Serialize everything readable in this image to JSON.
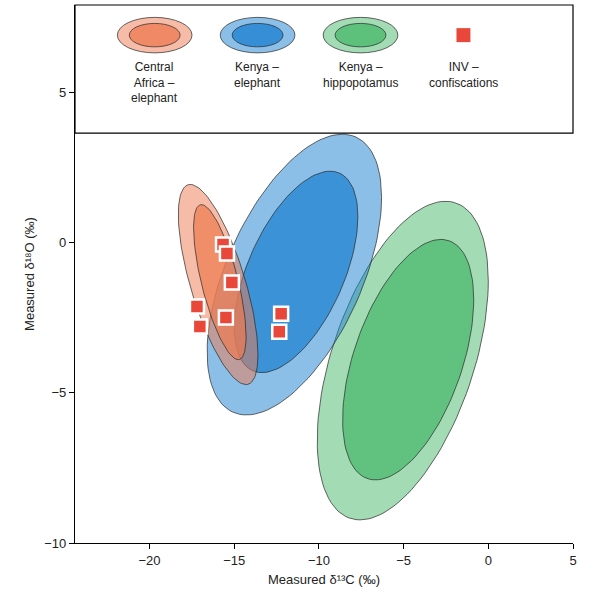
{
  "chart_data": {
    "type": "scatter",
    "xlabel": "Measured δ¹³C (‰)",
    "ylabel": "Measured δ¹⁸O (‰)",
    "xlim": [
      -24.4,
      5
    ],
    "ylim": [
      -10,
      7.9
    ],
    "xticks": [
      -20,
      -15,
      -10,
      -5,
      0,
      5
    ],
    "yticks": [
      -10,
      -5,
      0,
      5
    ],
    "legend": "top",
    "series": [
      {
        "name": "Central Africa – elephant",
        "type": "ellipse",
        "color": "#ee7a50",
        "outer": {
          "center_x": -15.95,
          "center_y": -1.4,
          "half_width": 2.35,
          "half_height": 3.33,
          "correlation": -0.7
        },
        "inner": {
          "center_x": -15.85,
          "center_y": -1.32,
          "half_width": 1.55,
          "half_height": 2.58,
          "correlation": -0.7
        }
      },
      {
        "name": "Kenya – elephant",
        "type": "ellipse",
        "color": "#1a7fd0",
        "outer": {
          "center_x": -11.45,
          "center_y": -1.07,
          "half_width": 5.15,
          "half_height": 4.67,
          "correlation": 0.55
        },
        "inner": {
          "center_x": -11.35,
          "center_y": -0.98,
          "half_width": 3.65,
          "half_height": 3.35,
          "correlation": 0.55
        }
      },
      {
        "name": "Kenya – hippopotamus",
        "type": "ellipse",
        "color": "#46b86a",
        "outer": {
          "center_x": -5.05,
          "center_y": -3.93,
          "half_width": 5.05,
          "half_height": 5.3,
          "correlation": 0.5
        },
        "inner": {
          "center_x": -4.73,
          "center_y": -3.9,
          "half_width": 3.87,
          "half_height": 4.0,
          "correlation": 0.5
        }
      },
      {
        "name": "INV – confiscations",
        "type": "scatter",
        "marker": "square",
        "color": "#e8473a",
        "x": [
          -15.66,
          -15.43,
          -15.14,
          -17.2,
          -17.03,
          -15.49,
          -12.23,
          -12.34
        ],
        "y": [
          -0.07,
          -0.37,
          -1.33,
          -2.13,
          -2.8,
          -2.5,
          -2.37,
          -2.97
        ]
      }
    ]
  }
}
